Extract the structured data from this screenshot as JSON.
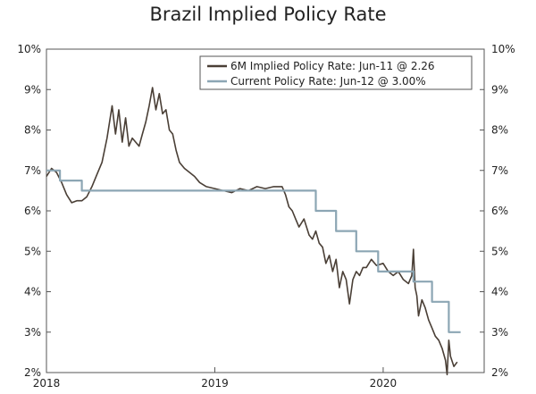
{
  "chart_data": {
    "type": "line",
    "title": "Brazil Implied Policy Rate",
    "xlabel": "",
    "ylabel": "",
    "ylim": [
      2,
      10
    ],
    "xlim": [
      2018.0,
      2020.6
    ],
    "y_ticks": [
      2,
      3,
      4,
      5,
      6,
      7,
      8,
      9,
      10
    ],
    "y_tick_labels": [
      "2%",
      "3%",
      "4%",
      "5%",
      "6%",
      "7%",
      "8%",
      "9%",
      "10%"
    ],
    "x_ticks": [
      2018.0,
      2019.0,
      2020.0
    ],
    "x_tick_labels": [
      "2018",
      "2019",
      "2020"
    ],
    "grid": false,
    "legend_position": "top-right",
    "series": [
      {
        "name": "6M Implied Policy Rate: Jun-11 @ 2.26",
        "color": "#4a3f36",
        "x": [
          2018.0,
          2018.03,
          2018.06,
          2018.09,
          2018.12,
          2018.15,
          2018.18,
          2018.21,
          2018.24,
          2018.27,
          2018.3,
          2018.33,
          2018.36,
          2018.39,
          2018.41,
          2018.43,
          2018.45,
          2018.47,
          2018.49,
          2018.51,
          2018.53,
          2018.55,
          2018.57,
          2018.59,
          2018.61,
          2018.63,
          2018.65,
          2018.67,
          2018.69,
          2018.71,
          2018.73,
          2018.75,
          2018.77,
          2018.79,
          2018.82,
          2018.85,
          2018.88,
          2018.91,
          2018.95,
          2019.0,
          2019.05,
          2019.1,
          2019.15,
          2019.2,
          2019.25,
          2019.3,
          2019.35,
          2019.4,
          2019.42,
          2019.44,
          2019.46,
          2019.48,
          2019.5,
          2019.53,
          2019.56,
          2019.58,
          2019.6,
          2019.62,
          2019.64,
          2019.66,
          2019.68,
          2019.7,
          2019.72,
          2019.74,
          2019.76,
          2019.78,
          2019.8,
          2019.82,
          2019.84,
          2019.86,
          2019.88,
          2019.9,
          2019.93,
          2019.96,
          2020.0,
          2020.03,
          2020.06,
          2020.09,
          2020.12,
          2020.15,
          2020.17,
          2020.18,
          2020.19,
          2020.2,
          2020.21,
          2020.23,
          2020.25,
          2020.27,
          2020.29,
          2020.31,
          2020.33,
          2020.35,
          2020.37,
          2020.38,
          2020.39,
          2020.4,
          2020.42,
          2020.44
        ],
        "values": [
          6.85,
          7.05,
          6.95,
          6.7,
          6.4,
          6.2,
          6.25,
          6.25,
          6.35,
          6.6,
          6.9,
          7.2,
          7.8,
          8.6,
          7.9,
          8.5,
          7.7,
          8.3,
          7.6,
          7.8,
          7.7,
          7.6,
          7.9,
          8.2,
          8.6,
          9.05,
          8.5,
          8.9,
          8.4,
          8.5,
          8.0,
          7.9,
          7.5,
          7.2,
          7.05,
          6.95,
          6.85,
          6.7,
          6.6,
          6.55,
          6.5,
          6.45,
          6.55,
          6.5,
          6.6,
          6.55,
          6.6,
          6.6,
          6.4,
          6.1,
          6.0,
          5.8,
          5.6,
          5.8,
          5.4,
          5.3,
          5.5,
          5.2,
          5.1,
          4.7,
          4.9,
          4.5,
          4.8,
          4.1,
          4.5,
          4.3,
          3.7,
          4.3,
          4.5,
          4.4,
          4.6,
          4.6,
          4.8,
          4.65,
          4.7,
          4.5,
          4.4,
          4.5,
          4.3,
          4.2,
          4.4,
          5.05,
          4.1,
          3.9,
          3.4,
          3.8,
          3.6,
          3.3,
          3.1,
          2.9,
          2.8,
          2.6,
          2.3,
          1.95,
          2.8,
          2.4,
          2.15,
          2.26
        ]
      },
      {
        "name": "Current Policy Rate: Jun-12 @ 3.00%",
        "color": "#8ca6b4",
        "step": true,
        "x": [
          2018.0,
          2018.08,
          2018.21,
          2019.6,
          2019.72,
          2019.84,
          2019.97,
          2020.18,
          2020.29,
          2020.39,
          2020.46
        ],
        "values": [
          7.0,
          6.75,
          6.5,
          6.0,
          5.5,
          5.0,
          4.5,
          4.25,
          3.75,
          3.0,
          3.0
        ]
      }
    ]
  }
}
